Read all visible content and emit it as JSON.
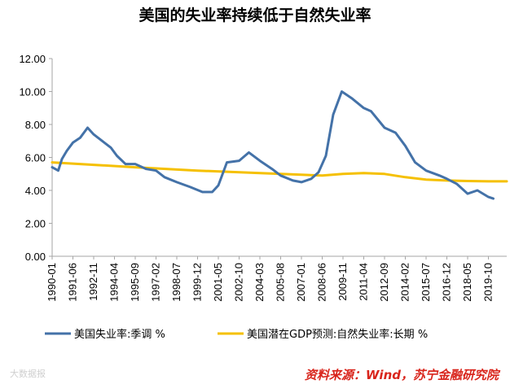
{
  "chart_data": {
    "type": "line",
    "title": "美国的失业率持续低于自然失业率",
    "ylim": [
      0,
      12
    ],
    "y_ticks": [
      "0.00",
      "2.00",
      "4.00",
      "6.00",
      "8.00",
      "10.00",
      "12.00"
    ],
    "x_ticks": [
      "1990-01",
      "1991-06",
      "1992-11",
      "1994-04",
      "1995-09",
      "1997-02",
      "1998-07",
      "1999-12",
      "2001-05",
      "2002-10",
      "2004-03",
      "2005-08",
      "2007-01",
      "2008-06",
      "2009-11",
      "2011-04",
      "2012-09",
      "2014-02",
      "2015-07",
      "2016-12",
      "2018-05",
      "2019-10"
    ],
    "x_range": [
      "1990-01",
      "2021-01"
    ],
    "grid": false,
    "legend_position": "bottom",
    "series": [
      {
        "name": "美国失业率:季调  %",
        "color": "#4472a8",
        "points": [
          [
            "1990-01",
            5.4
          ],
          [
            "1990-06",
            5.2
          ],
          [
            "1990-09",
            5.9
          ],
          [
            "1991-01",
            6.4
          ],
          [
            "1991-06",
            6.9
          ],
          [
            "1991-12",
            7.2
          ],
          [
            "1992-06",
            7.8
          ],
          [
            "1992-11",
            7.4
          ],
          [
            "1993-06",
            7.0
          ],
          [
            "1994-01",
            6.6
          ],
          [
            "1994-06",
            6.1
          ],
          [
            "1995-01",
            5.6
          ],
          [
            "1995-09",
            5.6
          ],
          [
            "1996-06",
            5.3
          ],
          [
            "1997-02",
            5.2
          ],
          [
            "1997-09",
            4.8
          ],
          [
            "1998-07",
            4.5
          ],
          [
            "1999-06",
            4.2
          ],
          [
            "2000-04",
            3.9
          ],
          [
            "2000-12",
            3.9
          ],
          [
            "2001-05",
            4.3
          ],
          [
            "2001-12",
            5.7
          ],
          [
            "2002-10",
            5.8
          ],
          [
            "2003-06",
            6.3
          ],
          [
            "2004-03",
            5.8
          ],
          [
            "2005-01",
            5.3
          ],
          [
            "2005-08",
            4.9
          ],
          [
            "2006-06",
            4.6
          ],
          [
            "2007-01",
            4.5
          ],
          [
            "2007-09",
            4.7
          ],
          [
            "2008-03",
            5.1
          ],
          [
            "2008-09",
            6.1
          ],
          [
            "2009-03",
            8.6
          ],
          [
            "2009-10",
            10.0
          ],
          [
            "2010-06",
            9.6
          ],
          [
            "2011-04",
            9.0
          ],
          [
            "2011-10",
            8.8
          ],
          [
            "2012-09",
            7.8
          ],
          [
            "2013-06",
            7.5
          ],
          [
            "2014-02",
            6.7
          ],
          [
            "2014-10",
            5.7
          ],
          [
            "2015-07",
            5.2
          ],
          [
            "2016-06",
            4.9
          ],
          [
            "2016-12",
            4.7
          ],
          [
            "2017-08",
            4.4
          ],
          [
            "2018-05",
            3.8
          ],
          [
            "2019-01",
            4.0
          ],
          [
            "2019-10",
            3.6
          ],
          [
            "2020-02",
            3.5
          ]
        ]
      },
      {
        "name": "美国潜在GDP预测:自然失业率:长期  %",
        "color": "#f5c001",
        "points": [
          [
            "1990-01",
            5.7
          ],
          [
            "1992-11",
            5.55
          ],
          [
            "1995-09",
            5.4
          ],
          [
            "1999-12",
            5.2
          ],
          [
            "2004-03",
            5.05
          ],
          [
            "2007-01",
            4.95
          ],
          [
            "2008-06",
            4.9
          ],
          [
            "2009-11",
            5.0
          ],
          [
            "2011-04",
            5.05
          ],
          [
            "2012-09",
            5.0
          ],
          [
            "2014-02",
            4.8
          ],
          [
            "2015-07",
            4.65
          ],
          [
            "2016-12",
            4.6
          ],
          [
            "2018-05",
            4.57
          ],
          [
            "2019-10",
            4.55
          ],
          [
            "2021-01",
            4.55
          ]
        ]
      }
    ],
    "source": "资料来源：Wind，苏宁金融研究院",
    "watermark": "大数据报"
  }
}
